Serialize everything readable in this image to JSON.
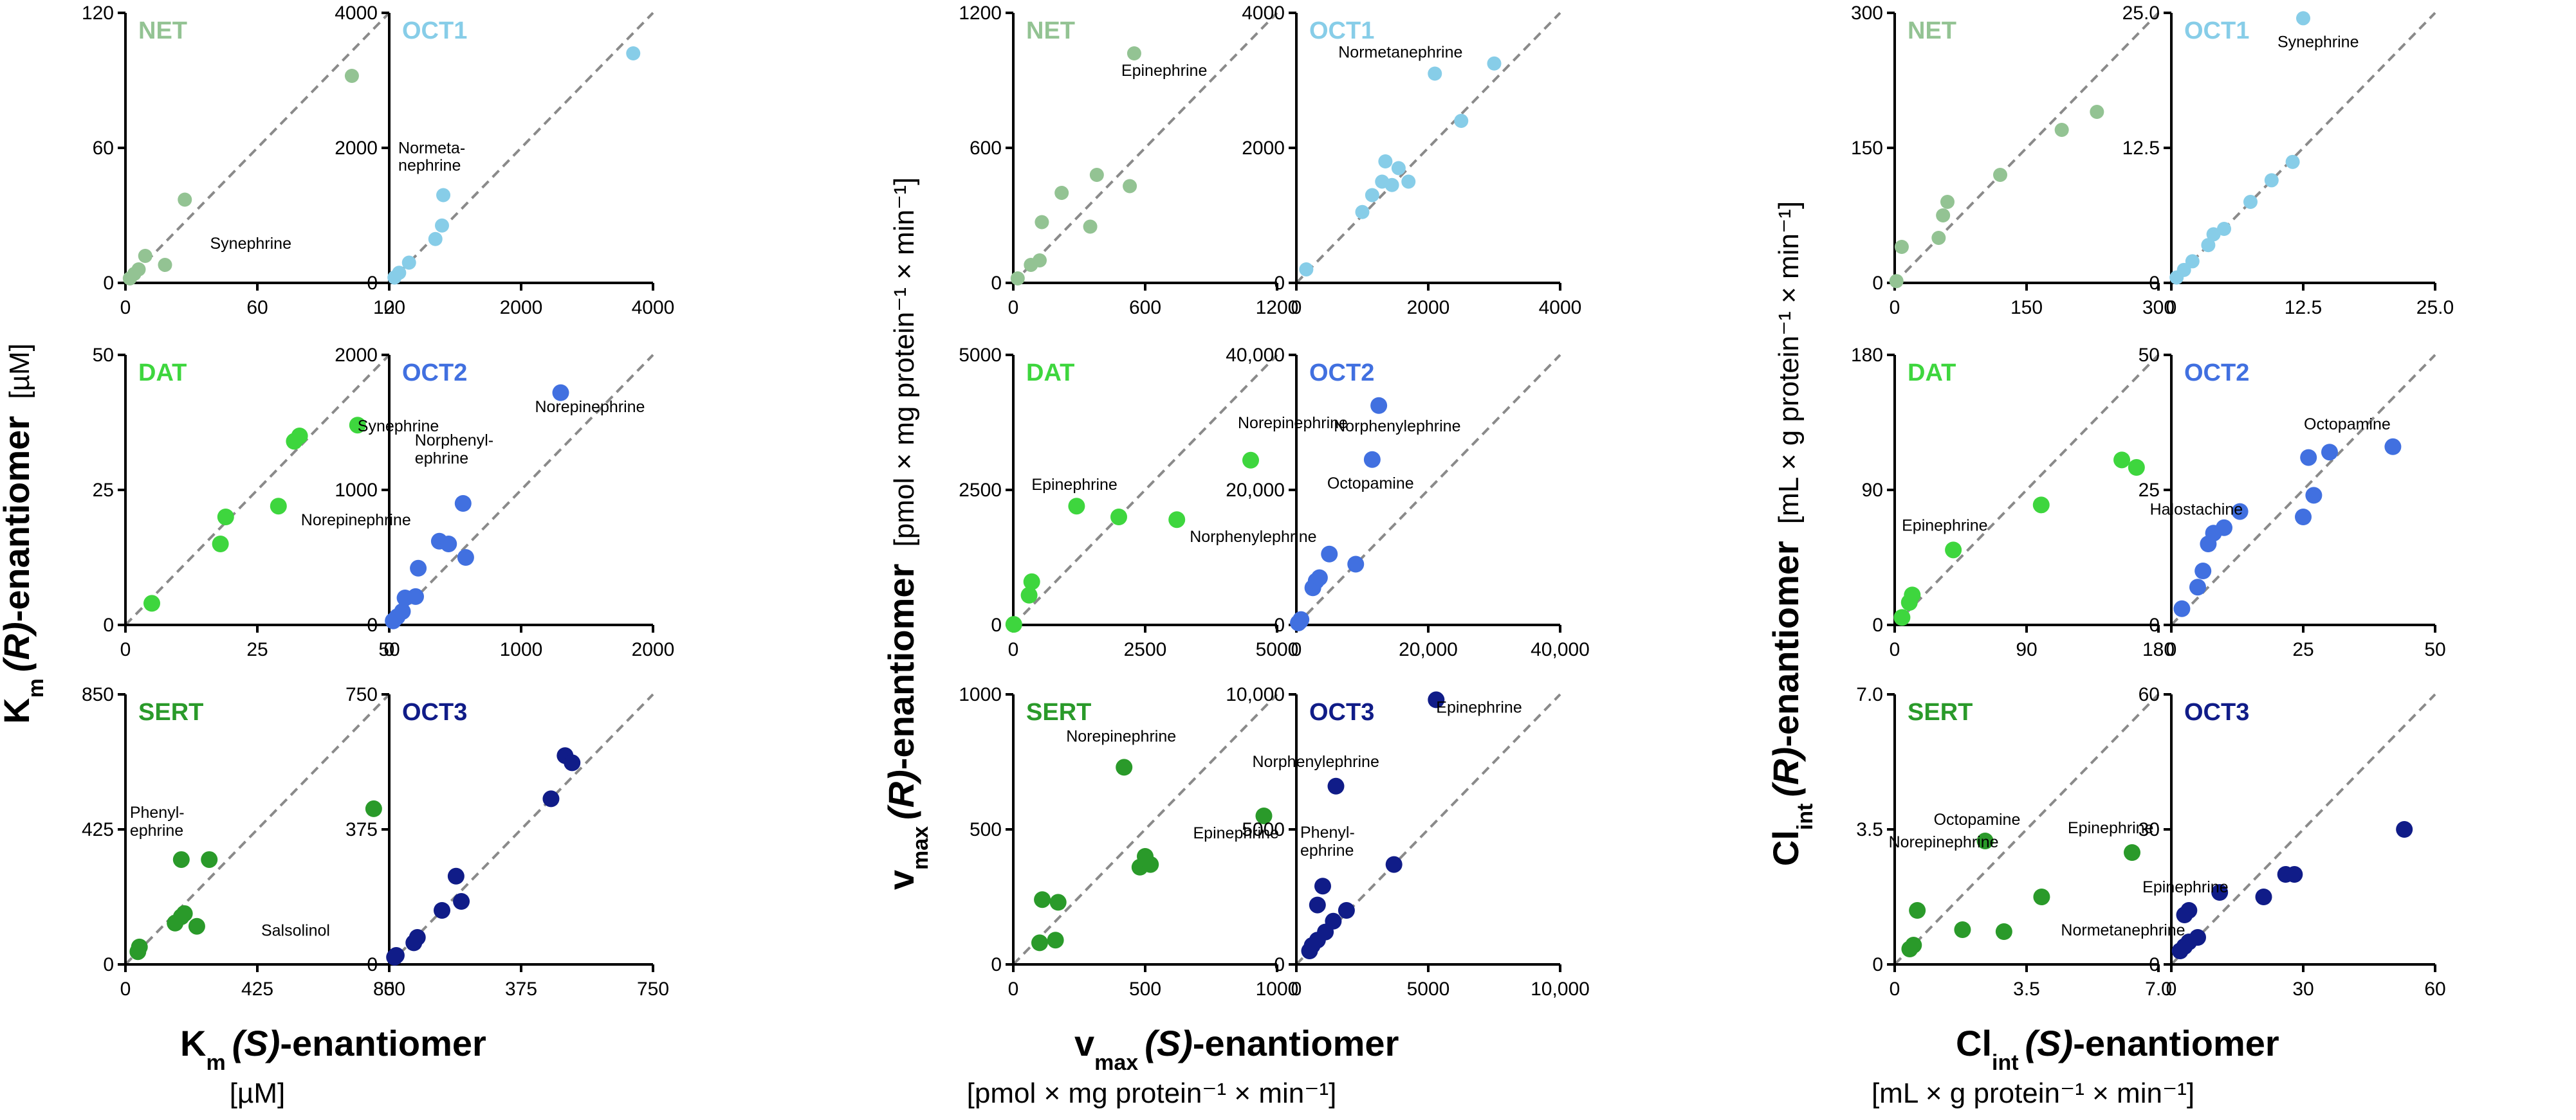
{
  "colors": {
    "NET": "#93c393",
    "OCT1": "#87cde8",
    "DAT": "#3ed63e",
    "OCT2": "#4170e0",
    "SERT": "#2a9a2a",
    "OCT3": "#101c88",
    "diagonal": "#8a8a8a",
    "axis": "#000000"
  },
  "column_axis_labels": [
    {
      "x_title_main": "K",
      "x_title_sub": "m",
      "x_title_italic": "(S)",
      "x_title_rest": "-enantiomer",
      "x_unit": "[µM]",
      "y_title_main": "K",
      "y_title_sub": "m",
      "y_title_italic": "(R)",
      "y_title_rest": "-enantiomer",
      "y_unit": "[µM]"
    },
    {
      "x_title_main": "v",
      "x_title_sub": "max",
      "x_title_italic": "(S)",
      "x_title_rest": "-enantiomer",
      "x_unit": "[pmol × mg protein⁻¹ × min⁻¹]",
      "y_title_main": "v",
      "y_title_sub": "max",
      "y_title_italic": "(R)",
      "y_title_rest": "-enantiomer",
      "y_unit": "[pmol × mg protein⁻¹ × min⁻¹]"
    },
    {
      "x_title_main": "Cl",
      "x_title_sub": "int",
      "x_title_italic": "(S)",
      "x_title_rest": "-enantiomer",
      "x_unit": "[mL × g protein⁻¹ × min⁻¹]",
      "y_title_main": "Cl",
      "y_title_sub": "int",
      "y_title_italic": "(R)",
      "y_title_rest": "-enantiomer",
      "y_unit": "[mL × g protein⁻¹ × min⁻¹]"
    }
  ],
  "chart_data": [
    {
      "id": "km-net",
      "type": "scatter",
      "title": "NET",
      "col": 0,
      "row": 0,
      "side": "left",
      "xlim": [
        0,
        120
      ],
      "ylim": [
        0,
        120
      ],
      "xticks": [
        "0",
        "60",
        "120"
      ],
      "yticks": [
        "0",
        "60",
        "120"
      ],
      "points": [
        [
          2,
          2
        ],
        [
          4,
          4
        ],
        [
          6,
          6
        ],
        [
          9,
          12
        ],
        [
          18,
          8
        ],
        [
          27,
          37
        ],
        [
          103,
          92
        ]
      ],
      "annotations": [
        {
          "text": "Synephrine",
          "point": 4
        }
      ]
    },
    {
      "id": "km-oct1",
      "type": "scatter",
      "title": "OCT1",
      "col": 0,
      "row": 0,
      "side": "right",
      "xlim": [
        0,
        4000
      ],
      "ylim": [
        0,
        4000
      ],
      "xticks": [
        "0",
        "2000",
        "4000"
      ],
      "yticks": [
        "0",
        "2000",
        "4000"
      ],
      "points": [
        [
          80,
          80
        ],
        [
          150,
          150
        ],
        [
          300,
          300
        ],
        [
          700,
          650
        ],
        [
          800,
          850
        ],
        [
          820,
          1300
        ],
        [
          3700,
          3400
        ]
      ],
      "annotations": [
        {
          "text": "Normeta-",
          "point": 5
        },
        {
          "text": "nephrine",
          "point": 5
        }
      ]
    },
    {
      "id": "km-dat",
      "type": "scatter",
      "title": "DAT",
      "col": 0,
      "row": 1,
      "side": "left",
      "xlim": [
        0,
        50
      ],
      "ylim": [
        0,
        50
      ],
      "xticks": [
        "0",
        "25",
        "50"
      ],
      "yticks": [
        "0",
        "25",
        "50"
      ],
      "points": [
        [
          5,
          4
        ],
        [
          18,
          15
        ],
        [
          19,
          20
        ],
        [
          29,
          22
        ],
        [
          32,
          34
        ],
        [
          33,
          35
        ],
        [
          44,
          37
        ]
      ],
      "annotations": [
        {
          "text": "Synephrine",
          "point": 6
        },
        {
          "text": "Norepinephrine",
          "point": 3
        }
      ]
    },
    {
      "id": "km-oct2",
      "type": "scatter",
      "title": "OCT2",
      "col": 0,
      "row": 1,
      "side": "right",
      "xlim": [
        0,
        2000
      ],
      "ylim": [
        0,
        2000
      ],
      "xticks": [
        "0",
        "1000",
        "2000"
      ],
      "yticks": [
        "0",
        "1000",
        "2000"
      ],
      "points": [
        [
          30,
          30
        ],
        [
          60,
          60
        ],
        [
          100,
          100
        ],
        [
          120,
          200
        ],
        [
          200,
          210
        ],
        [
          220,
          420
        ],
        [
          380,
          620
        ],
        [
          450,
          600
        ],
        [
          560,
          900
        ],
        [
          580,
          500
        ],
        [
          1300,
          1720
        ]
      ],
      "annotations": [
        {
          "text": "Norepinephrine",
          "point": 10
        },
        {
          "text": "Norphenyl-",
          "point": 8
        },
        {
          "text": "ephrine",
          "point": 8
        }
      ]
    },
    {
      "id": "km-sert",
      "type": "scatter",
      "title": "SERT",
      "col": 0,
      "row": 2,
      "side": "left",
      "xlim": [
        0,
        850
      ],
      "ylim": [
        0,
        850
      ],
      "xticks": [
        "0",
        "425",
        "850"
      ],
      "yticks": [
        "0",
        "425",
        "850"
      ],
      "points": [
        [
          40,
          40
        ],
        [
          45,
          55
        ],
        [
          160,
          130
        ],
        [
          180,
          150
        ],
        [
          190,
          160
        ],
        [
          180,
          330
        ],
        [
          230,
          120
        ],
        [
          270,
          330
        ],
        [
          800,
          490
        ]
      ],
      "annotations": [
        {
          "text": "Phenyl-",
          "point": 5
        },
        {
          "text": "ephrine",
          "point": 5
        },
        {
          "text": "Salsolinol",
          "point": 6
        }
      ]
    },
    {
      "id": "km-oct3",
      "type": "scatter",
      "title": "OCT3",
      "col": 0,
      "row": 2,
      "side": "right",
      "xlim": [
        0,
        750
      ],
      "ylim": [
        0,
        750
      ],
      "xticks": [
        "0",
        "375",
        "750"
      ],
      "yticks": [
        "0",
        "375",
        "750"
      ],
      "points": [
        [
          15,
          20
        ],
        [
          20,
          25
        ],
        [
          70,
          60
        ],
        [
          80,
          75
        ],
        [
          150,
          150
        ],
        [
          190,
          245
        ],
        [
          205,
          175
        ],
        [
          460,
          460
        ],
        [
          500,
          580
        ],
        [
          520,
          560
        ]
      ],
      "annotations": []
    },
    {
      "id": "vmax-net",
      "type": "scatter",
      "title": "NET",
      "col": 1,
      "row": 0,
      "side": "left",
      "xlim": [
        0,
        1200
      ],
      "ylim": [
        0,
        1200
      ],
      "xticks": [
        "0",
        "600",
        "1200"
      ],
      "yticks": [
        "0",
        "600",
        "1200"
      ],
      "points": [
        [
          20,
          20
        ],
        [
          80,
          80
        ],
        [
          120,
          100
        ],
        [
          130,
          270
        ],
        [
          220,
          400
        ],
        [
          350,
          250
        ],
        [
          380,
          480
        ],
        [
          530,
          430
        ],
        [
          550,
          1020
        ]
      ],
      "annotations": [
        {
          "text": "Epinephrine",
          "point": 8
        }
      ]
    },
    {
      "id": "vmax-oct1",
      "type": "scatter",
      "title": "OCT1",
      "col": 1,
      "row": 0,
      "side": "right",
      "xlim": [
        0,
        4000
      ],
      "ylim": [
        0,
        4000
      ],
      "xticks": [
        "0",
        "2000",
        "4000"
      ],
      "yticks": [
        "0",
        "2000",
        "4000"
      ],
      "points": [
        [
          150,
          200
        ],
        [
          1000,
          1050
        ],
        [
          1150,
          1300
        ],
        [
          1300,
          1500
        ],
        [
          1350,
          1800
        ],
        [
          1450,
          1450
        ],
        [
          1550,
          1700
        ],
        [
          1700,
          1500
        ],
        [
          2100,
          3100
        ],
        [
          2500,
          2400
        ],
        [
          3000,
          3250
        ]
      ],
      "annotations": [
        {
          "text": "Normetanephrine",
          "point": 8
        }
      ]
    },
    {
      "id": "vmax-dat",
      "type": "scatter",
      "title": "DAT",
      "col": 1,
      "row": 1,
      "side": "left",
      "xlim": [
        0,
        5000
      ],
      "ylim": [
        0,
        5000
      ],
      "xticks": [
        "0",
        "2500",
        "5000"
      ],
      "yticks": [
        "0",
        "2500",
        "5000"
      ],
      "points": [
        [
          10,
          10
        ],
        [
          300,
          550
        ],
        [
          350,
          800
        ],
        [
          1200,
          2200
        ],
        [
          2000,
          2000
        ],
        [
          3100,
          1950
        ],
        [
          4500,
          3050
        ]
      ],
      "annotations": [
        {
          "text": "Epinephrine",
          "point": 3
        },
        {
          "text": "Norepinephrine",
          "point": 6
        },
        {
          "text": "Norphenylephrine",
          "point": 5
        }
      ]
    },
    {
      "id": "vmax-oct2",
      "type": "scatter",
      "title": "OCT2",
      "col": 1,
      "row": 1,
      "side": "right",
      "xlim": [
        0,
        40000
      ],
      "ylim": [
        0,
        40000
      ],
      "xticks": [
        "0",
        "20,000",
        "40,000"
      ],
      "yticks": [
        "0",
        "20,000",
        "40,000"
      ],
      "points": [
        [
          300,
          300
        ],
        [
          600,
          600
        ],
        [
          700,
          800
        ],
        [
          2500,
          5500
        ],
        [
          3000,
          6500
        ],
        [
          3500,
          7000
        ],
        [
          5000,
          10500
        ],
        [
          9000,
          9000
        ],
        [
          11500,
          24500
        ],
        [
          12500,
          32500
        ]
      ],
      "annotations": [
        {
          "text": "Norphenylephrine",
          "point": 9
        },
        {
          "text": "Octopamine",
          "point": 8
        }
      ]
    },
    {
      "id": "vmax-sert",
      "type": "scatter",
      "title": "SERT",
      "col": 1,
      "row": 2,
      "side": "left",
      "xlim": [
        0,
        1000
      ],
      "ylim": [
        0,
        1000
      ],
      "xticks": [
        "0",
        "500",
        "1000"
      ],
      "yticks": [
        "0",
        "500",
        "1000"
      ],
      "points": [
        [
          100,
          80
        ],
        [
          110,
          240
        ],
        [
          160,
          90
        ],
        [
          170,
          230
        ],
        [
          420,
          730
        ],
        [
          480,
          360
        ],
        [
          500,
          400
        ],
        [
          520,
          370
        ],
        [
          950,
          550
        ]
      ],
      "annotations": [
        {
          "text": "Norepinephrine",
          "point": 4
        },
        {
          "text": "Epinephrine",
          "point": 8
        }
      ]
    },
    {
      "id": "vmax-oct3",
      "type": "scatter",
      "title": "OCT3",
      "col": 1,
      "row": 2,
      "side": "right",
      "xlim": [
        0,
        10000
      ],
      "ylim": [
        0,
        10000
      ],
      "xticks": [
        "0",
        "5000",
        "10,000"
      ],
      "yticks": [
        "0",
        "5000",
        "10,000"
      ],
      "points": [
        [
          500,
          500
        ],
        [
          600,
          700
        ],
        [
          800,
          900
        ],
        [
          1100,
          1200
        ],
        [
          1400,
          1600
        ],
        [
          1500,
          6600
        ],
        [
          1900,
          2000
        ],
        [
          3700,
          3700
        ],
        [
          5300,
          9800
        ],
        [
          800,
          2200
        ],
        [
          1000,
          2900
        ]
      ],
      "annotations": [
        {
          "text": "Epinephrine",
          "point": 8
        },
        {
          "text": "Norphenylephrine",
          "point": 5
        },
        {
          "text": "Phenyl-",
          "point": 10
        },
        {
          "text": "ephrine",
          "point": 10
        }
      ]
    },
    {
      "id": "clint-net",
      "type": "scatter",
      "title": "NET",
      "col": 2,
      "row": 0,
      "side": "left",
      "xlim": [
        0,
        300
      ],
      "ylim": [
        0,
        300
      ],
      "xticks": [
        "0",
        "150",
        "300"
      ],
      "yticks": [
        "0",
        "150",
        "300"
      ],
      "points": [
        [
          2,
          2
        ],
        [
          8,
          40
        ],
        [
          50,
          50
        ],
        [
          55,
          75
        ],
        [
          60,
          90
        ],
        [
          120,
          120
        ],
        [
          190,
          170
        ],
        [
          230,
          190
        ]
      ],
      "annotations": []
    },
    {
      "id": "clint-oct1",
      "type": "scatter",
      "title": "OCT1",
      "col": 2,
      "row": 0,
      "side": "right",
      "xlim": [
        0,
        25
      ],
      "ylim": [
        0,
        25
      ],
      "xticks": [
        "0",
        "12.5",
        "25.0"
      ],
      "yticks": [
        "0",
        "12.5",
        "25.0"
      ],
      "points": [
        [
          0.5,
          0.5
        ],
        [
          1.2,
          1.2
        ],
        [
          2,
          2
        ],
        [
          3.5,
          3.5
        ],
        [
          4,
          4.5
        ],
        [
          5,
          5
        ],
        [
          7.5,
          7.5
        ],
        [
          9.5,
          9.5
        ],
        [
          11.5,
          11.2
        ],
        [
          12.5,
          24.5
        ]
      ],
      "annotations": [
        {
          "text": "Synephrine",
          "point": 9
        }
      ]
    },
    {
      "id": "clint-dat",
      "type": "scatter",
      "title": "DAT",
      "col": 2,
      "row": 1,
      "side": "left",
      "xlim": [
        0,
        180
      ],
      "ylim": [
        0,
        180
      ],
      "xticks": [
        "0",
        "90",
        "180"
      ],
      "yticks": [
        "0",
        "90",
        "180"
      ],
      "points": [
        [
          5,
          5
        ],
        [
          10,
          15
        ],
        [
          12,
          20
        ],
        [
          40,
          50
        ],
        [
          100,
          80
        ],
        [
          155,
          110
        ],
        [
          165,
          105
        ]
      ],
      "annotations": [
        {
          "text": "Epinephrine",
          "point": 3
        }
      ]
    },
    {
      "id": "clint-oct2",
      "type": "scatter",
      "title": "OCT2",
      "col": 2,
      "row": 1,
      "side": "right",
      "xlim": [
        0,
        50
      ],
      "ylim": [
        0,
        50
      ],
      "xticks": [
        "0",
        "25",
        "50"
      ],
      "yticks": [
        "0",
        "25",
        "50"
      ],
      "points": [
        [
          2,
          3
        ],
        [
          5,
          7
        ],
        [
          6,
          10
        ],
        [
          7,
          15
        ],
        [
          8,
          17
        ],
        [
          10,
          18
        ],
        [
          13,
          21
        ],
        [
          25,
          20
        ],
        [
          26,
          31
        ],
        [
          27,
          24
        ],
        [
          30,
          32
        ],
        [
          42,
          33
        ]
      ],
      "annotations": [
        {
          "text": "Octopamine",
          "point": 10
        },
        {
          "text": "Halostachine",
          "point": 6
        }
      ]
    },
    {
      "id": "clint-sert",
      "type": "scatter",
      "title": "SERT",
      "col": 2,
      "row": 2,
      "side": "left",
      "xlim": [
        0,
        7
      ],
      "ylim": [
        0,
        7
      ],
      "xticks": [
        "0",
        "3.5",
        "7.0"
      ],
      "yticks": [
        "0",
        "3.5",
        "7.0"
      ],
      "points": [
        [
          0.4,
          0.4
        ],
        [
          0.5,
          0.5
        ],
        [
          0.6,
          1.4
        ],
        [
          1.8,
          0.9
        ],
        [
          2.4,
          3.2
        ],
        [
          2.9,
          0.85
        ],
        [
          3.9,
          1.75
        ],
        [
          6.3,
          2.9
        ]
      ],
      "annotations": [
        {
          "text": "Octopamine",
          "point": 4
        },
        {
          "text": "Norepinephrine",
          "point": 4
        },
        {
          "text": "Epinephrine",
          "point": 7
        },
        {
          "text": "Normetanephrine",
          "point": 6
        }
      ]
    },
    {
      "id": "clint-oct3",
      "type": "scatter",
      "title": "OCT3",
      "col": 2,
      "row": 2,
      "side": "right",
      "xlim": [
        0,
        60
      ],
      "ylim": [
        0,
        60
      ],
      "xticks": [
        "0",
        "30",
        "60"
      ],
      "yticks": [
        "0",
        "30",
        "60"
      ],
      "points": [
        [
          2,
          3
        ],
        [
          3,
          4
        ],
        [
          4,
          5
        ],
        [
          6,
          6
        ],
        [
          3,
          11
        ],
        [
          4,
          12
        ],
        [
          11,
          16
        ],
        [
          21,
          15
        ],
        [
          26,
          20
        ],
        [
          28,
          20
        ],
        [
          53,
          30
        ]
      ],
      "annotations": [
        {
          "text": "Epinephrine",
          "point": 6
        }
      ]
    }
  ]
}
